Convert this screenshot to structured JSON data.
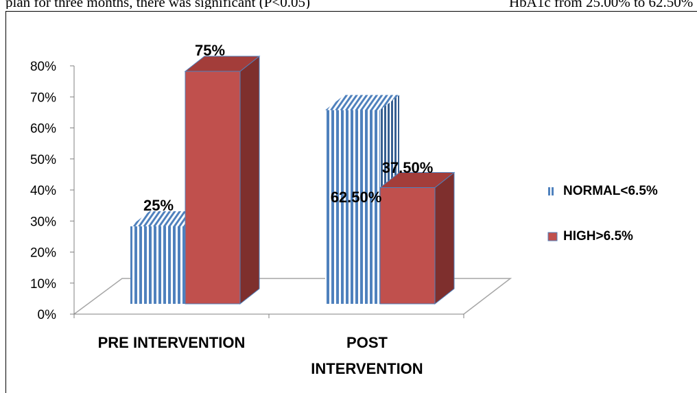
{
  "page_text": {
    "left_fragment": "plan for three months, there was significant (P<0.05)",
    "right_fragment": "HbA1c from 25.00% to 62.50%"
  },
  "colors": {
    "normal": "#4f81bd",
    "high": "#c0504d",
    "high_top": "#a33d3a",
    "high_side": "#7e2f2d",
    "floor_line": "#a6a6a6",
    "axis": "#808080"
  },
  "chart_data": {
    "type": "bar",
    "style": "3d-clustered-column",
    "categories": [
      "PRE INTERVENTION",
      "POST\nINTERVENTION"
    ],
    "series": [
      {
        "name": "NORMAL<6.5%",
        "values": [
          25,
          62.5
        ],
        "data_labels": [
          "25%",
          "62.50%"
        ],
        "pattern": "vertical-stripes"
      },
      {
        "name": "HIGH>6.5%",
        "values": [
          75,
          37.5
        ],
        "data_labels": [
          "75%",
          "37.50%"
        ],
        "pattern": "solid"
      }
    ],
    "y_ticks": [
      "0%",
      "10%",
      "20%",
      "30%",
      "40%",
      "50%",
      "60%",
      "70%",
      "80%"
    ],
    "ylim": [
      0,
      80
    ],
    "ylabel": "",
    "xlabel": "",
    "title": "",
    "grid": false,
    "legend_position": "right"
  }
}
